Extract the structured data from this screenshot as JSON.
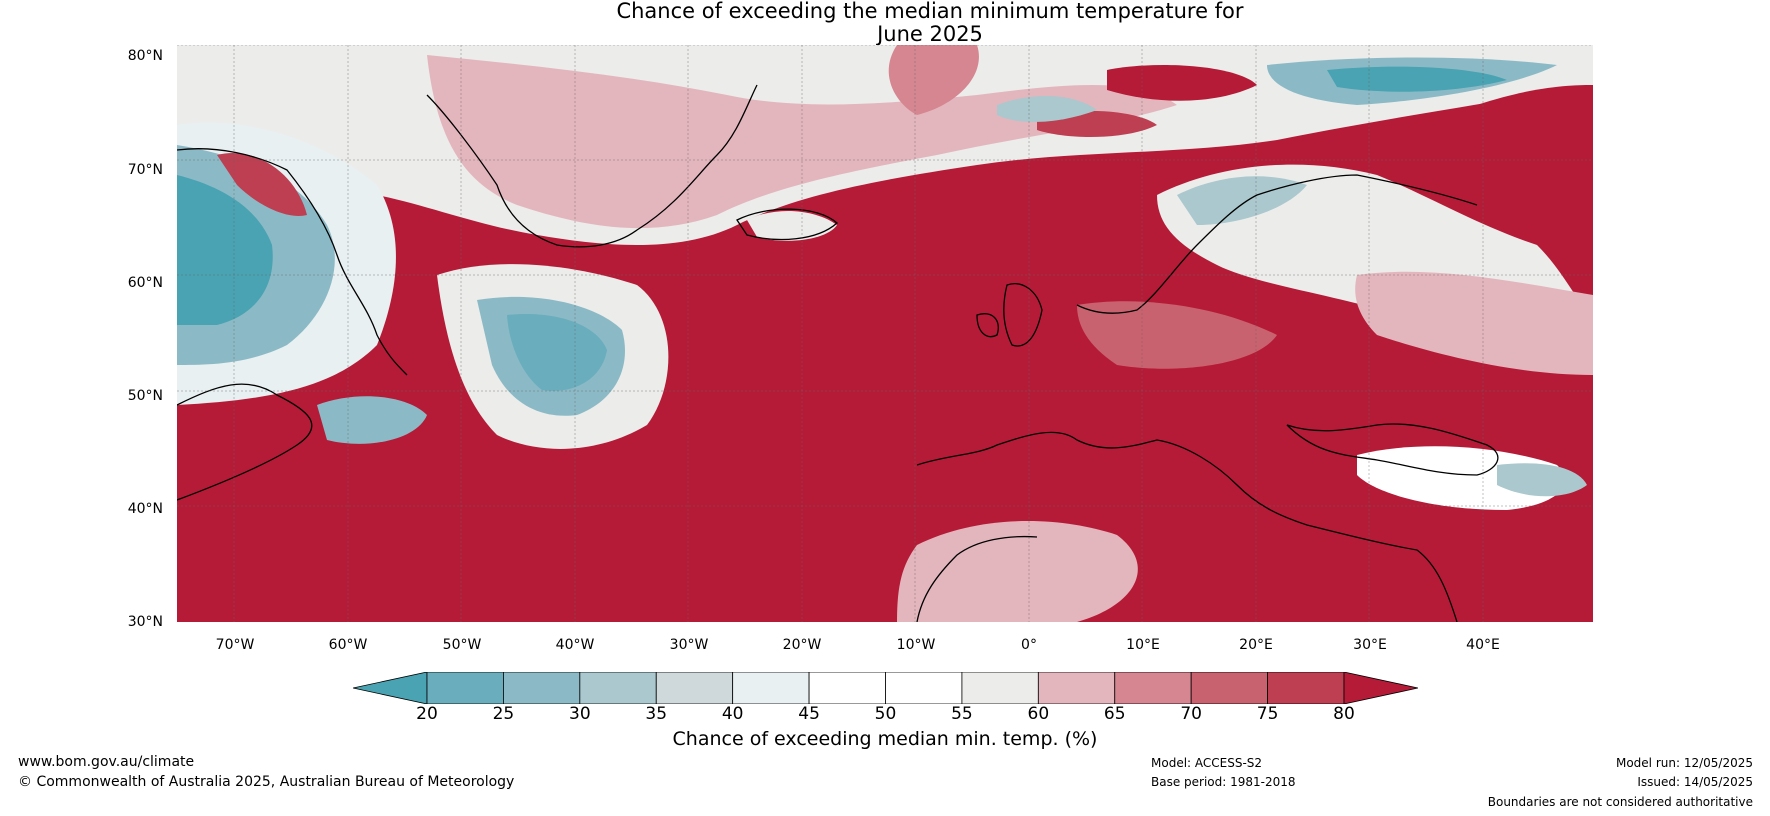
{
  "title": {
    "line1": "Chance of exceeding the median minimum temperature for",
    "line2": "June 2025"
  },
  "map": {
    "lat_labels": [
      "80°N",
      "70°N",
      "60°N",
      "50°N",
      "40°N",
      "30°N"
    ],
    "lon_labels": [
      "70°W",
      "60°W",
      "50°W",
      "40°W",
      "30°W",
      "20°W",
      "10°W",
      "0°",
      "10°E",
      "20°E",
      "30°E",
      "40°E"
    ]
  },
  "colorbar": {
    "ticks": [
      "20",
      "25",
      "30",
      "35",
      "40",
      "45",
      "50",
      "55",
      "60",
      "65",
      "70",
      "75",
      "80"
    ],
    "colors": [
      "#4aa3b2",
      "#6aadbd",
      "#8bbac6",
      "#aac8cd",
      "#cfd9dc",
      "#e8f0f2",
      "#ffffff",
      "#ffffff",
      "#ececeb",
      "#e3b6bd",
      "#d58690",
      "#c9626f",
      "#bd3f51",
      "#b51b37"
    ],
    "label": "Chance of exceeding median min. temp. (%)"
  },
  "footer": {
    "website": "www.bom.gov.au/climate",
    "copyright": "© Commonwealth of Australia 2025, Australian Bureau of Meteorology",
    "model": "Model: ACCESS-S2",
    "base_period": "Base period: 1981-2018",
    "model_run": "Model run: 12/05/2025",
    "issued": "Issued: 14/05/2025",
    "disclaimer": "Boundaries are not considered authoritative"
  }
}
